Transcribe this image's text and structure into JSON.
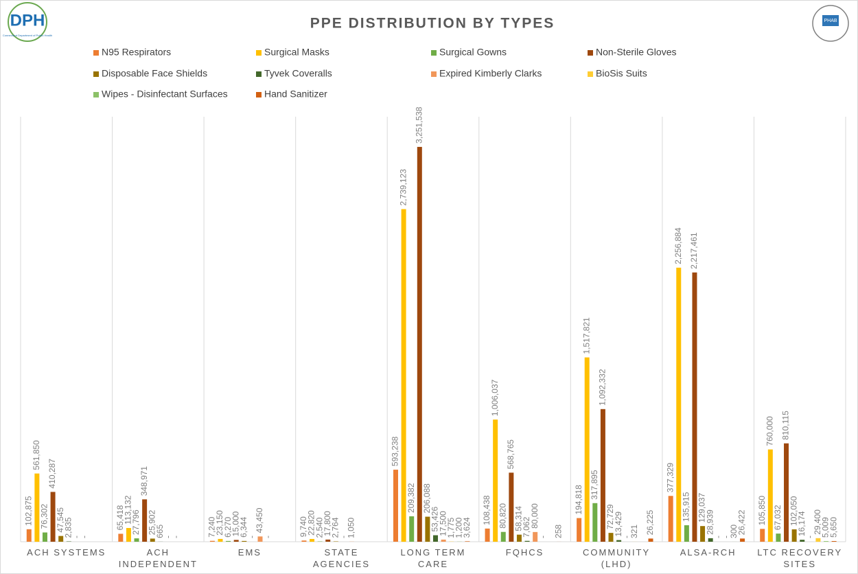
{
  "logos": {
    "left": "DPH",
    "left_sub": "Connecticut Department of Public Health",
    "right": "PHAB"
  },
  "chart_data": {
    "type": "bar",
    "title": "PPE DISTRIBUTION  BY TYPES",
    "categories": [
      "ACH SYSTEMS",
      "ACH\nINDEPENDENT",
      "EMS",
      "STATE AGENCIES",
      "LONG TERM\nCARE",
      "FQHCS",
      "COMMUNITY\n(LHD)",
      "ALSA-RCH",
      "LTC RECOVERY\nSITES"
    ],
    "ylim": [
      0,
      3500000
    ],
    "grid": "vertical-separators",
    "legend": "top",
    "series": [
      {
        "name": "N95 Respirators",
        "color": "#ed7d31",
        "values": [
          102875,
          65418,
          7240,
          9740,
          593238,
          108438,
          194818,
          377329,
          105850
        ],
        "value_labels": [
          "102,875",
          "65,418",
          "7,240",
          "9,740",
          "593,238",
          "108,438",
          "194,818",
          "377,329",
          "105,850"
        ]
      },
      {
        "name": "Surgical Masks",
        "color": "#ffc000",
        "values": [
          561850,
          113132,
          23150,
          22820,
          2739123,
          1006037,
          1517821,
          2256884,
          760000
        ],
        "value_labels": [
          "561,850",
          "113,132",
          "23,150",
          "22,820",
          "2,739,123",
          "1,006,037",
          "1,517,821",
          "2,256,884",
          "760,000"
        ]
      },
      {
        "name": "Surgical Gowns",
        "color": "#70ad47",
        "values": [
          76302,
          27796,
          6270,
          2540,
          209382,
          80820,
          317895,
          135915,
          67032
        ],
        "value_labels": [
          "76,302",
          "27,796",
          "6,270",
          "2,540",
          "209,382",
          "80,820",
          "317,895",
          "135,915",
          "67,032"
        ]
      },
      {
        "name": "Non-Sterile Gloves",
        "color": "#9e480e",
        "values": [
          410287,
          348971,
          15000,
          17800,
          3251538,
          568765,
          1092332,
          2217461,
          810115
        ],
        "value_labels": [
          "410,287",
          "348,971",
          "15,000",
          "17,800",
          "3,251,538",
          "568,765",
          "1,092,332",
          "2,217,461",
          "810,115"
        ]
      },
      {
        "name": "Disposable Face Shields",
        "color": "#997300",
        "values": [
          47545,
          25902,
          6344,
          2764,
          206088,
          58314,
          72729,
          129037,
          102050
        ],
        "value_labels": [
          "47,545",
          "25,902",
          "6,344",
          "2,764",
          "206,088",
          "58,314",
          "72,729",
          "129,037",
          "102,050"
        ]
      },
      {
        "name": "Tyvek Coveralls",
        "color": "#43682b",
        "values": [
          2835,
          665,
          0,
          0,
          53426,
          7062,
          13429,
          28939,
          16174
        ],
        "value_labels": [
          "2,835",
          "665",
          "-",
          "-",
          "53,426",
          "7,062",
          "13,429",
          "28,939",
          "16,174"
        ]
      },
      {
        "name": "Expired Kimberly Clarks",
        "color": "#f1975a",
        "values": [
          0,
          0,
          43450,
          1050,
          17500,
          80000,
          0,
          0,
          0
        ],
        "value_labels": [
          "-",
          "-",
          "43,450",
          "1,050",
          "17,500",
          "80,000",
          "-",
          "-",
          "-"
        ]
      },
      {
        "name": "BioSis Suits",
        "color": "#ffcd33",
        "values": [
          0,
          0,
          0,
          null,
          1775,
          0,
          321,
          0,
          29400
        ],
        "value_labels": [
          "-",
          "-",
          "-",
          null,
          "1,775",
          "-",
          "321",
          "-",
          "29,400"
        ]
      },
      {
        "name": "Wipes - Disinfectant Surfaces",
        "color": "#8cc168",
        "values": [
          null,
          null,
          null,
          null,
          1200,
          null,
          null,
          300,
          5009
        ],
        "value_labels": [
          null,
          null,
          null,
          null,
          "1,200",
          null,
          null,
          "300",
          "5,009"
        ]
      },
      {
        "name": "Hand Sanitizer",
        "color": "#d26012",
        "values": [
          null,
          null,
          null,
          null,
          3624,
          258,
          26225,
          26422,
          5650
        ],
        "value_labels": [
          null,
          null,
          null,
          null,
          "3,624",
          "258",
          "26,225",
          "26,422",
          "5,650"
        ]
      }
    ]
  }
}
